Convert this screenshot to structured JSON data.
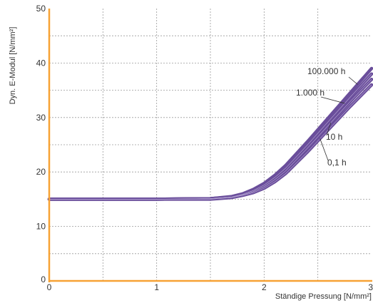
{
  "chart_data": {
    "type": "line",
    "title": "",
    "xlabel": "Ständige Pressung [N/mm²]",
    "ylabel": "Dyn. E-Modul [N/mm²]",
    "xlim": [
      0,
      3
    ],
    "ylim": [
      0,
      50
    ],
    "x_ticks": [
      "0",
      "1",
      "2",
      "3"
    ],
    "y_ticks": [
      "0",
      "10",
      "20",
      "30",
      "40",
      "50"
    ],
    "grid": true,
    "grid_style": "dashed",
    "colors": {
      "series": "#6a4e9b",
      "axis": "#f7a234",
      "grid": "#9a9a9a"
    },
    "series": [
      {
        "name": "100.000 h",
        "x": [
          0,
          0.5,
          1.0,
          1.5,
          1.7,
          1.8,
          1.9,
          2.0,
          2.1,
          2.2,
          2.4,
          2.6,
          2.8,
          3.0
        ],
        "y": [
          15,
          15,
          15,
          15.1,
          15.5,
          16.0,
          16.8,
          17.9,
          19.4,
          21.2,
          25.5,
          30.0,
          34.5,
          39.0
        ]
      },
      {
        "name": "1.000 h",
        "x": [
          0,
          0.5,
          1.0,
          1.5,
          1.7,
          1.8,
          1.9,
          2.0,
          2.1,
          2.2,
          2.4,
          2.6,
          2.8,
          3.0
        ],
        "y": [
          15,
          15,
          15,
          15.1,
          15.4,
          15.9,
          16.6,
          17.6,
          19.0,
          20.7,
          24.9,
          29.3,
          33.7,
          38.0
        ]
      },
      {
        "name": "10 h",
        "x": [
          0,
          0.5,
          1.0,
          1.5,
          1.7,
          1.8,
          1.9,
          2.0,
          2.1,
          2.2,
          2.4,
          2.6,
          2.8,
          3.0
        ],
        "y": [
          15,
          15,
          15,
          15.1,
          15.4,
          15.8,
          16.4,
          17.3,
          18.6,
          20.2,
          24.3,
          28.6,
          32.9,
          37.0
        ]
      },
      {
        "name": "0,1 h",
        "x": [
          0,
          0.5,
          1.0,
          1.5,
          1.7,
          1.8,
          1.9,
          2.0,
          2.1,
          2.2,
          2.4,
          2.6,
          2.8,
          3.0
        ],
        "y": [
          15,
          15,
          15,
          15.0,
          15.3,
          15.7,
          16.2,
          17.0,
          18.2,
          19.7,
          23.6,
          27.8,
          32.0,
          36.0
        ]
      }
    ]
  }
}
